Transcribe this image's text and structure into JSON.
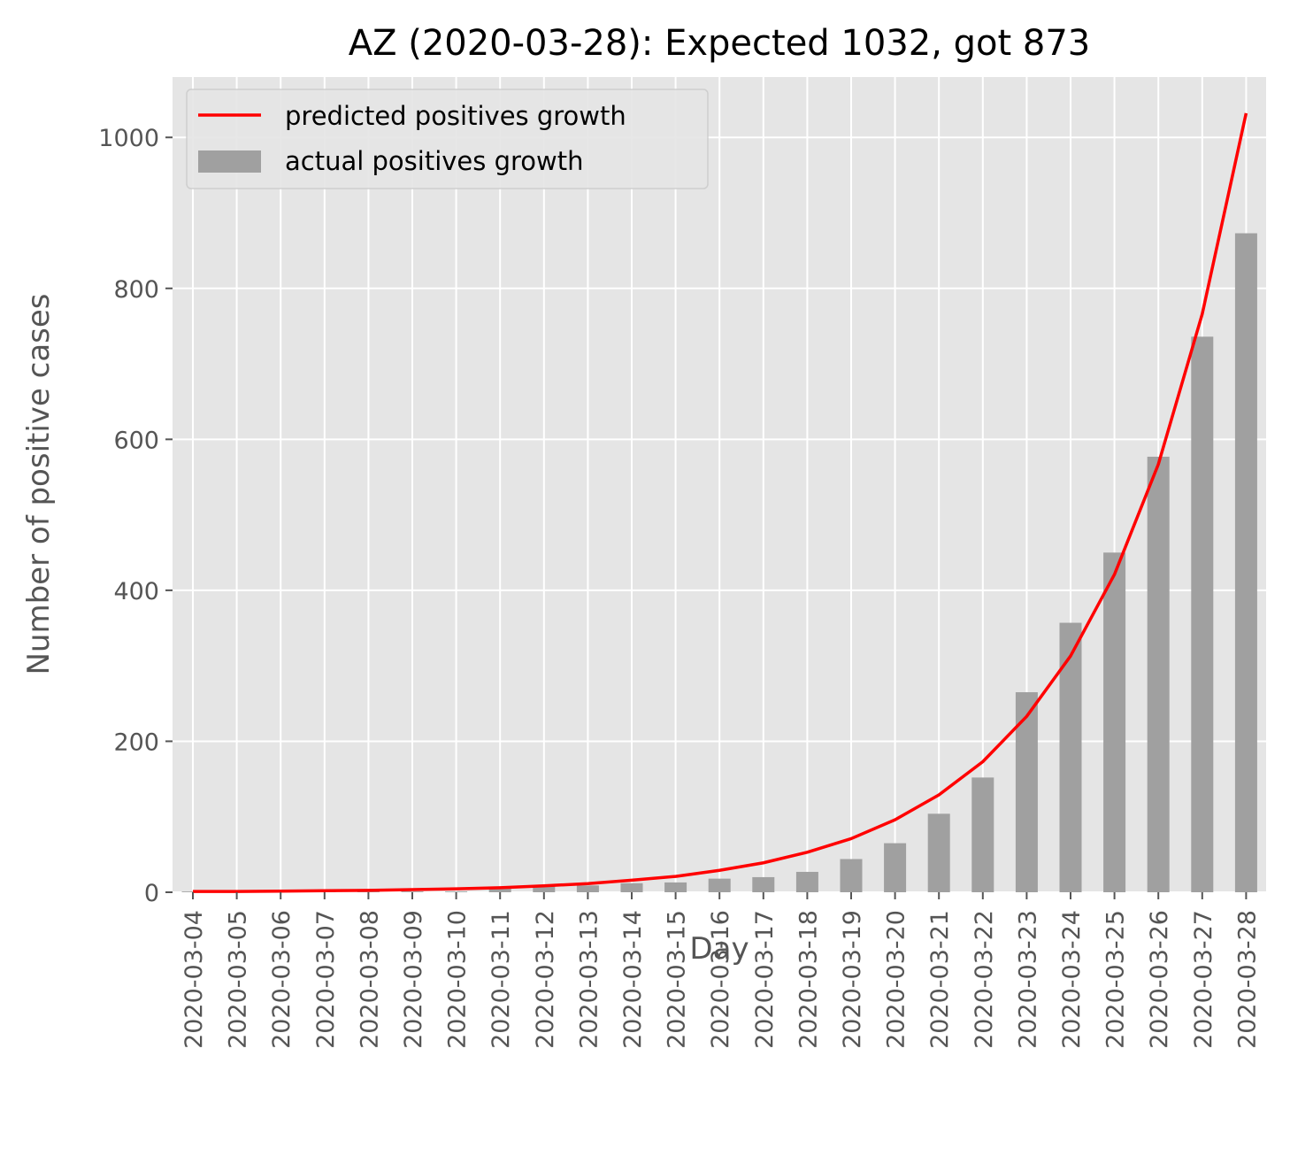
{
  "chart_data": {
    "type": "bar",
    "title": "AZ (2020-03-28): Expected 1032, got 873",
    "xlabel": "Day",
    "ylabel": "Number of positive cases",
    "ylim": [
      0,
      1080
    ],
    "yticks": [
      0,
      200,
      400,
      600,
      800,
      1000
    ],
    "grid": true,
    "legend_position": "top-left",
    "categories": [
      "2020-03-04",
      "2020-03-05",
      "2020-03-06",
      "2020-03-07",
      "2020-03-08",
      "2020-03-09",
      "2020-03-10",
      "2020-03-11",
      "2020-03-12",
      "2020-03-13",
      "2020-03-14",
      "2020-03-15",
      "2020-03-16",
      "2020-03-17",
      "2020-03-18",
      "2020-03-19",
      "2020-03-20",
      "2020-03-21",
      "2020-03-22",
      "2020-03-23",
      "2020-03-24",
      "2020-03-25",
      "2020-03-26",
      "2020-03-27",
      "2020-03-28"
    ],
    "series": [
      {
        "name": "predicted positives growth",
        "kind": "line",
        "color": "#ff0000",
        "values": [
          1,
          1,
          1.5,
          2,
          2.5,
          3.5,
          4.5,
          6,
          8.5,
          11.5,
          16,
          21,
          29,
          39,
          53,
          71,
          96,
          129,
          173,
          233,
          313,
          421,
          567,
          766,
          1032
        ]
      },
      {
        "name": "actual positives growth",
        "kind": "bar",
        "color": "#a0a0a0",
        "values": [
          1,
          1,
          1,
          1,
          1,
          1,
          1,
          5,
          9,
          9,
          12,
          13,
          18,
          20,
          27,
          44,
          65,
          104,
          152,
          265,
          357,
          450,
          577,
          736,
          873
        ]
      }
    ]
  }
}
